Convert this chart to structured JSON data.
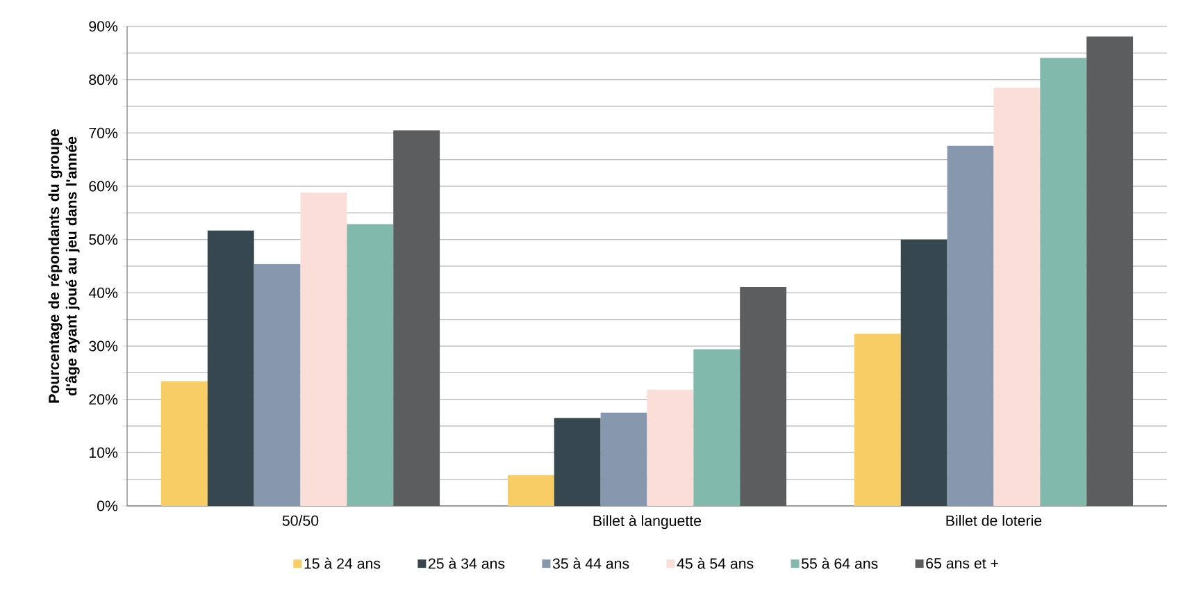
{
  "chart_data": {
    "type": "bar",
    "ylabel": "Pourcentage de répondants du groupe d'âge ayant joué au jeu dans l'année",
    "categories": [
      "50/50",
      "Billet à languette",
      "Billet de loterie"
    ],
    "series": [
      {
        "name": "15 à 24 ans",
        "color": "#f9cd65",
        "values": [
          23.4,
          5.8,
          32.3
        ]
      },
      {
        "name": "25 à 34 ans",
        "color": "#36474f",
        "values": [
          51.7,
          16.5,
          50.0
        ]
      },
      {
        "name": "35 à 44 ans",
        "color": "#8798ae",
        "values": [
          45.4,
          17.5,
          67.6
        ]
      },
      {
        "name": "45 à 54 ans",
        "color": "#fcded9",
        "values": [
          58.8,
          21.8,
          78.5
        ]
      },
      {
        "name": "55 à 64 ans",
        "color": "#82b9ad",
        "values": [
          52.9,
          29.4,
          84.1
        ]
      },
      {
        "name": "65 ans et +",
        "color": "#5b5d5f",
        "values": [
          70.5,
          41.1,
          88.1
        ]
      }
    ],
    "ylim": [
      0,
      90
    ],
    "yticks": [
      {
        "value": 0,
        "label": "0%"
      },
      {
        "value": 5,
        "label": null
      },
      {
        "value": 10,
        "label": "10%"
      },
      {
        "value": 15,
        "label": null
      },
      {
        "value": 20,
        "label": "20%"
      },
      {
        "value": 25,
        "label": null
      },
      {
        "value": 30,
        "label": "30%"
      },
      {
        "value": 35,
        "label": null
      },
      {
        "value": 40,
        "label": "40%"
      },
      {
        "value": 45,
        "label": null
      },
      {
        "value": 50,
        "label": "50%"
      },
      {
        "value": 55,
        "label": null
      },
      {
        "value": 60,
        "label": "60%"
      },
      {
        "value": 65,
        "label": null
      },
      {
        "value": 70,
        "label": "70%"
      },
      {
        "value": 75,
        "label": null
      },
      {
        "value": 80,
        "label": "80%"
      },
      {
        "value": 85,
        "label": null
      },
      {
        "value": 90,
        "label": "90%"
      }
    ],
    "grid": "y",
    "legend": "bottom"
  }
}
